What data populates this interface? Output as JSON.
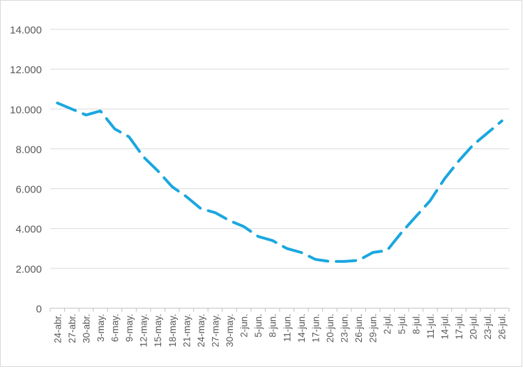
{
  "chart_data": {
    "type": "line",
    "title": "",
    "xlabel": "",
    "ylabel": "",
    "grid": true,
    "line_style": "dashed",
    "series_color": "#1aa7df",
    "ylim": [
      0,
      14000
    ],
    "y_ticks": [
      0,
      2000,
      4000,
      6000,
      8000,
      10000,
      12000,
      14000
    ],
    "y_tick_labels": [
      "0",
      "2.000",
      "4.000",
      "6.000",
      "8.000",
      "10.000",
      "12.000",
      "14.000"
    ],
    "x_tick_labels": [
      "24-abr.",
      "27-abr.",
      "30-abr.",
      "3-may.",
      "6-may.",
      "9-may.",
      "12-may.",
      "15-may.",
      "18-may.",
      "21-may.",
      "24-may.",
      "27-may.",
      "30-may.",
      "2-jun.",
      "5-jun.",
      "8-jun.",
      "11-jun.",
      "14-jun.",
      "17-jun.",
      "20-jun.",
      "23-jun.",
      "26-jun.",
      "29-jun.",
      "2-jul.",
      "5-jul.",
      "8-jul.",
      "11-jul.",
      "14-jul.",
      "17-jul.",
      "20-jul.",
      "23-jul.",
      "26-jul."
    ],
    "series": [
      {
        "values": [
          10300,
          10000,
          9700,
          9900,
          9000,
          8600,
          7600,
          6900,
          6100,
          5600,
          5000,
          4800,
          4400,
          4100,
          3600,
          3400,
          3000,
          2800,
          2450,
          2350,
          2350,
          2400,
          2800,
          2900,
          3800,
          4600,
          5400,
          6500,
          7400,
          8200,
          8800,
          9400
        ]
      }
    ]
  }
}
